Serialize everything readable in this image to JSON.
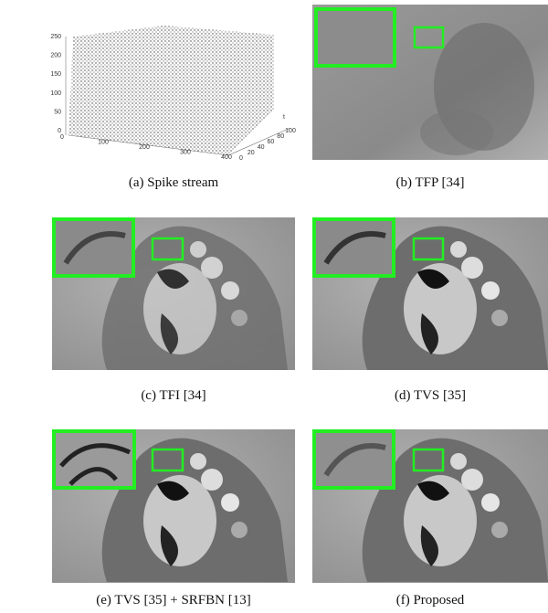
{
  "figure": {
    "spike_plot": {
      "z_ticks": [
        0,
        50,
        100,
        150,
        200,
        250
      ],
      "x_ticks": [
        0,
        100,
        200,
        300,
        400
      ],
      "t_ticks": [
        0,
        20,
        40,
        60,
        80,
        100
      ],
      "t_label": "t"
    },
    "captions": [
      "(a)  Spike stream",
      "(b)  TFP [34]",
      "(c)  TFI [34]",
      "(d)  TVS [35]",
      "(e)  TVS [35] + SRFBN [13]",
      "(f)  Proposed"
    ]
  }
}
